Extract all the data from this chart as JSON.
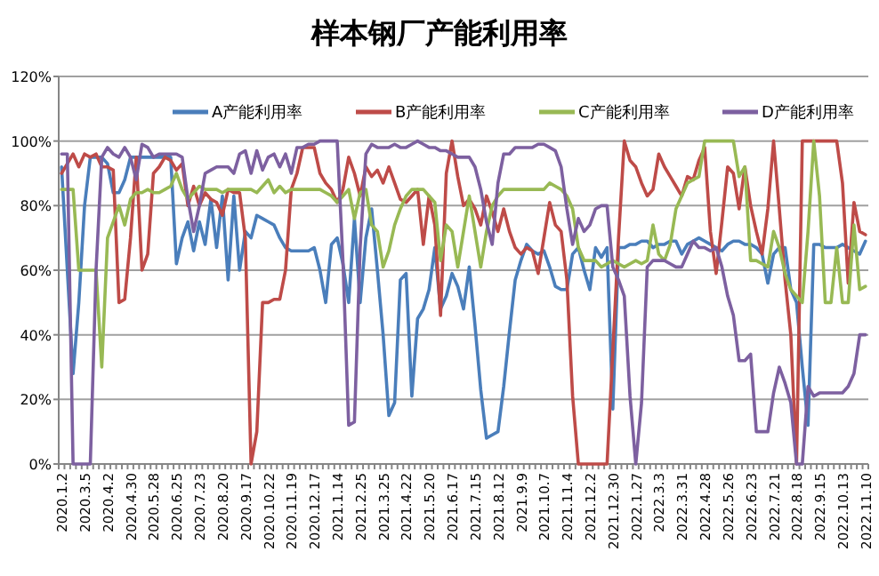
{
  "chart_data": {
    "type": "line",
    "title": "样本钢厂产能利用率",
    "categories": [
      "2020.1.2",
      null,
      null,
      null,
      "2020.3.5",
      null,
      null,
      null,
      "2020.4.2",
      null,
      null,
      null,
      "2020.4.30",
      null,
      null,
      null,
      "2020.5.28",
      null,
      null,
      null,
      "2020.6.25",
      null,
      null,
      null,
      "2020.7.23",
      null,
      null,
      null,
      "2020.8.20",
      null,
      null,
      null,
      "2020.9.17",
      null,
      null,
      null,
      "2020.10.22",
      null,
      null,
      null,
      "2020.11.19",
      null,
      null,
      null,
      "2020.12.17",
      null,
      null,
      null,
      "2021.1.14",
      null,
      null,
      null,
      "2021.2.25",
      null,
      null,
      null,
      "2021.3.25",
      null,
      null,
      null,
      "2021.4.22",
      null,
      null,
      null,
      "2021.5.20",
      null,
      null,
      null,
      "2021.6.17",
      null,
      null,
      null,
      "2021.7.15",
      null,
      null,
      null,
      "2021.8.12",
      null,
      null,
      null,
      "2021.9.9",
      null,
      null,
      null,
      "2021.10.7",
      null,
      null,
      null,
      "2021.11.4",
      null,
      null,
      null,
      "2021.12.2",
      null,
      null,
      null,
      "2021.12.30",
      null,
      null,
      null,
      "2022.1.27",
      null,
      null,
      null,
      "2022.3.3",
      null,
      null,
      null,
      "2022.3.31",
      null,
      null,
      null,
      "2022.4.28",
      null,
      null,
      null,
      "2022.5.26",
      null,
      null,
      null,
      "2022.6.23",
      null,
      null,
      null,
      "2022.7.21",
      null,
      null,
      null,
      "2022.8.18",
      null,
      null,
      null,
      "2022.9.15",
      null,
      null,
      null,
      "2022.10.13",
      null,
      null,
      null,
      "2022.11.10"
    ],
    "series": [
      {
        "name": "A产能利用率",
        "color": "#4a7ebb",
        "values": [
          92,
          60,
          28,
          50,
          80,
          95,
          95,
          95,
          93,
          84,
          84,
          88,
          95,
          95,
          95,
          95,
          95,
          95,
          95,
          95,
          62,
          70,
          75,
          66,
          75,
          68,
          82,
          67,
          83,
          57,
          83,
          60,
          72,
          70,
          77,
          76,
          75,
          74,
          70,
          67,
          66,
          66,
          66,
          66,
          67,
          60,
          50,
          68,
          70,
          62,
          50,
          76,
          50,
          70,
          79,
          60,
          40,
          15,
          19,
          57,
          59,
          21,
          45,
          48,
          54,
          67,
          48,
          52,
          59,
          55,
          48,
          61,
          43,
          23,
          8,
          9,
          10,
          24,
          41,
          57,
          63,
          68,
          66,
          65,
          66,
          61,
          55,
          54,
          54,
          65,
          67,
          60,
          54,
          67,
          64,
          67,
          17,
          67,
          67,
          68,
          68,
          69,
          69,
          67,
          68,
          68,
          69,
          69,
          65,
          68,
          69,
          70,
          69,
          68,
          67,
          66,
          68,
          69,
          69,
          68,
          68,
          67,
          65,
          56,
          65,
          67,
          67,
          54,
          50,
          30,
          12,
          68,
          68,
          67,
          67,
          67,
          68,
          67,
          66,
          65,
          69
        ]
      },
      {
        "name": "B产能利用率",
        "color": "#be4b48",
        "values": [
          90,
          93,
          96,
          92,
          96,
          95,
          96,
          92,
          92,
          91,
          50,
          51,
          70,
          95,
          60,
          65,
          90,
          92,
          95,
          94,
          91,
          93,
          80,
          86,
          80,
          84,
          82,
          81,
          77,
          85,
          84,
          84,
          70,
          0,
          10,
          50,
          50,
          51,
          51,
          60,
          85,
          90,
          98,
          98,
          98,
          90,
          87,
          85,
          81,
          85,
          95,
          90,
          83,
          92,
          89,
          91,
          87,
          92,
          87,
          82,
          81,
          83,
          85,
          68,
          83,
          74,
          46,
          90,
          100,
          89,
          80,
          82,
          79,
          74,
          83,
          78,
          72,
          79,
          72,
          67,
          65,
          67,
          66,
          59,
          70,
          81,
          74,
          72,
          57,
          21,
          0,
          0,
          0,
          0,
          0,
          0,
          35,
          70,
          100,
          94,
          92,
          87,
          83,
          85,
          96,
          92,
          89,
          86,
          83,
          89,
          88,
          94,
          98,
          72,
          59,
          75,
          92,
          90,
          79,
          92,
          80,
          72,
          65,
          79,
          100,
          79,
          57,
          40,
          0,
          100,
          100,
          100,
          100,
          100,
          100,
          100,
          87,
          56,
          81,
          72,
          71
        ]
      },
      {
        "name": "C产能利用率",
        "color": "#98b954",
        "values": [
          85,
          85,
          85,
          60,
          60,
          60,
          60,
          30,
          70,
          75,
          80,
          74,
          82,
          84,
          84,
          85,
          84,
          84,
          85,
          86,
          90,
          85,
          82,
          84,
          86,
          85,
          85,
          85,
          84,
          85,
          85,
          85,
          85,
          85,
          84,
          86,
          88,
          84,
          86,
          84,
          85,
          85,
          85,
          85,
          85,
          85,
          84,
          83,
          81,
          83,
          85,
          76,
          84,
          85,
          74,
          72,
          61,
          66,
          74,
          79,
          83,
          85,
          85,
          85,
          83,
          81,
          63,
          74,
          72,
          61,
          72,
          83,
          72,
          61,
          72,
          80,
          83,
          85,
          85,
          85,
          85,
          85,
          85,
          85,
          85,
          87,
          86,
          85,
          83,
          79,
          67,
          63,
          63,
          63,
          61,
          62,
          63,
          62,
          61,
          62,
          63,
          62,
          63,
          74,
          65,
          63,
          68,
          79,
          83,
          87,
          88,
          89,
          100,
          100,
          100,
          100,
          100,
          100,
          89,
          92,
          63,
          63,
          62,
          61,
          72,
          67,
          59,
          54,
          52,
          50,
          72,
          100,
          83,
          50,
          50,
          67,
          50,
          50,
          74,
          54,
          55
        ]
      },
      {
        "name": "D产能利用率",
        "color": "#7d60a0",
        "values": [
          96,
          96,
          0,
          0,
          0,
          0,
          60,
          95,
          98,
          96,
          95,
          98,
          95,
          88,
          99,
          98,
          95,
          96,
          96,
          96,
          96,
          95,
          82,
          72,
          80,
          90,
          91,
          92,
          92,
          92,
          90,
          96,
          97,
          90,
          97,
          91,
          95,
          96,
          92,
          96,
          90,
          98,
          98,
          99,
          99,
          100,
          100,
          100,
          100,
          63,
          12,
          13,
          67,
          96,
          99,
          98,
          98,
          98,
          99,
          98,
          98,
          99,
          100,
          99,
          98,
          98,
          97,
          97,
          96,
          95,
          95,
          95,
          92,
          85,
          75,
          68,
          87,
          96,
          96,
          98,
          98,
          98,
          98,
          99,
          99,
          98,
          97,
          92,
          79,
          68,
          76,
          72,
          74,
          79,
          80,
          80,
          61,
          57,
          52,
          21,
          0,
          19,
          61,
          63,
          63,
          63,
          62,
          61,
          61,
          65,
          69,
          67,
          67,
          66,
          67,
          61,
          52,
          46,
          32,
          32,
          34,
          10,
          10,
          10,
          22,
          30,
          25,
          19,
          0,
          0,
          24,
          21,
          22,
          22,
          22,
          22,
          22,
          24,
          28,
          40,
          40
        ]
      }
    ],
    "ylim": [
      0,
      120
    ],
    "yticks": [
      {
        "value": 0,
        "label": "0%"
      },
      {
        "value": 20,
        "label": "20%"
      },
      {
        "value": 40,
        "label": "40%"
      },
      {
        "value": 60,
        "label": "60%"
      },
      {
        "value": 80,
        "label": "80%"
      },
      {
        "value": 100,
        "label": "100%"
      },
      {
        "value": 120,
        "label": "120%"
      }
    ],
    "grid": "y",
    "legend": "top"
  }
}
